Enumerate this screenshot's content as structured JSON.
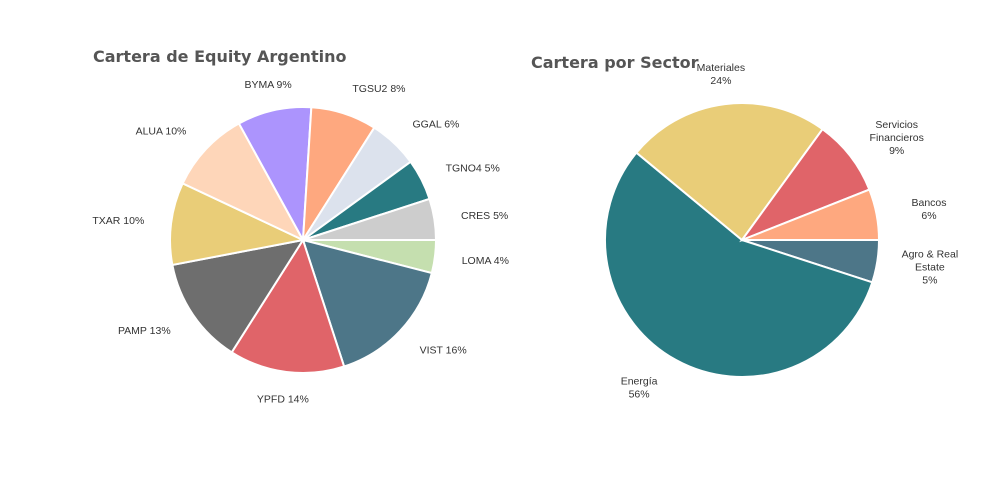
{
  "chart_data": [
    {
      "type": "pie",
      "title": "Cartera de Equity Argentino",
      "start_angle_deg": 0,
      "direction": "clockwise",
      "slices": [
        {
          "name": "LOMA",
          "value": 4,
          "label_lines": [
            "LOMA 4%"
          ],
          "color": "#c5dfaf"
        },
        {
          "name": "VIST",
          "value": 16,
          "label_lines": [
            "VIST 16%"
          ],
          "color": "#4d7688"
        },
        {
          "name": "YPFD",
          "value": 14,
          "label_lines": [
            "YPFD 14%"
          ],
          "color": "#e06469"
        },
        {
          "name": "PAMP",
          "value": 13,
          "label_lines": [
            "PAMP 13%"
          ],
          "color": "#6e6e6e"
        },
        {
          "name": "TXAR",
          "value": 10,
          "label_lines": [
            "TXAR 10%"
          ],
          "color": "#e9cd78"
        },
        {
          "name": "ALUA",
          "value": 10,
          "label_lines": [
            "ALUA 10%"
          ],
          "color": "#fed6b9"
        },
        {
          "name": "BYMA",
          "value": 9,
          "label_lines": [
            "BYMA 9%"
          ],
          "color": "#ac94fd"
        },
        {
          "name": "TGSU2",
          "value": 8,
          "label_lines": [
            "TGSU2 8%"
          ],
          "color": "#fea87f"
        },
        {
          "name": "GGAL",
          "value": 6,
          "label_lines": [
            "GGAL 6%"
          ],
          "color": "#dce2ed"
        },
        {
          "name": "TGNO4",
          "value": 5,
          "label_lines": [
            "TGNO4 5%"
          ],
          "color": "#287a82"
        },
        {
          "name": "CRES",
          "value": 5,
          "label_lines": [
            "CRES 5%"
          ],
          "color": "#cdcdcd"
        }
      ]
    },
    {
      "type": "pie",
      "title": "Cartera por Sector",
      "start_angle_deg": 0,
      "direction": "clockwise",
      "slices": [
        {
          "name": "Agro & Real Estate",
          "value": 5,
          "label_lines": [
            "Agro & Real",
            "Estate",
            "5%"
          ],
          "color": "#4d7688"
        },
        {
          "name": "Energía",
          "value": 56,
          "label_lines": [
            "Energía",
            "56%"
          ],
          "color": "#287a82"
        },
        {
          "name": "Materiales",
          "value": 24,
          "label_lines": [
            "Materiales",
            "24%"
          ],
          "color": "#e9cd78"
        },
        {
          "name": "Servicios Financieros",
          "value": 9,
          "label_lines": [
            "Servicios",
            "Financieros",
            "9%"
          ],
          "color": "#e06469"
        },
        {
          "name": "Bancos",
          "value": 6,
          "label_lines": [
            "Bancos",
            "6%"
          ],
          "color": "#fea87f"
        }
      ]
    }
  ]
}
